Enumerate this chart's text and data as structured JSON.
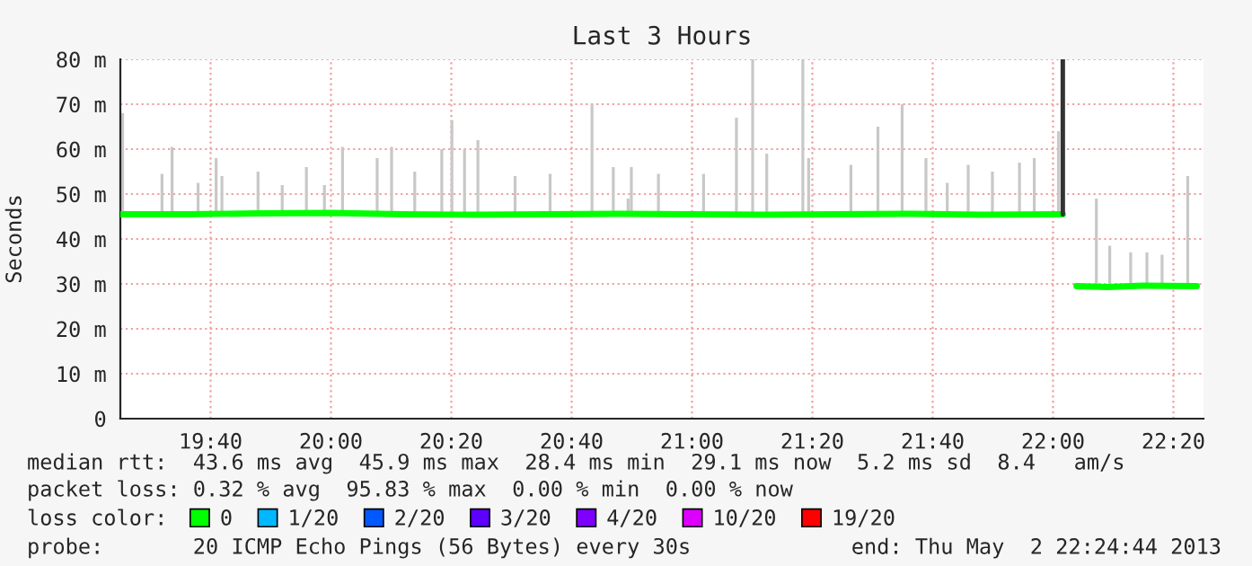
{
  "chart_data": {
    "type": "line",
    "title": "Last 3 Hours",
    "ylabel": "Seconds",
    "xlim": [
      19.4167,
      22.4167
    ],
    "ylim": [
      0,
      80
    ],
    "xticks": [
      {
        "value": 19.6667,
        "label": "19:40"
      },
      {
        "value": 20,
        "label": "20:00"
      },
      {
        "value": 20.3333,
        "label": "20:20"
      },
      {
        "value": 20.6667,
        "label": "20:40"
      },
      {
        "value": 21,
        "label": "21:00"
      },
      {
        "value": 21.3333,
        "label": "21:20"
      },
      {
        "value": 21.6667,
        "label": "21:40"
      },
      {
        "value": 22,
        "label": "22:00"
      },
      {
        "value": 22.3333,
        "label": "22:20"
      }
    ],
    "yticks": [
      0,
      {
        "value": 10,
        "label": "10 m"
      },
      {
        "value": 20,
        "label": "20 m"
      },
      {
        "value": 30,
        "label": "30 m"
      },
      {
        "value": 40,
        "label": "40 m"
      },
      {
        "value": 50,
        "label": "50 m"
      },
      {
        "value": 60,
        "label": "60 m"
      },
      {
        "value": 70,
        "label": "70 m"
      },
      {
        "value": 80,
        "label": "80 m"
      }
    ],
    "grid": true,
    "legend": "bottom",
    "legend_title": "loss color:",
    "series": [
      {
        "type": "bar",
        "color": "#c8c8c8",
        "x": [
          19.423,
          19.532,
          19.56,
          19.632,
          19.682,
          19.698,
          19.798,
          19.865,
          19.932,
          19.982,
          20.032,
          20.128,
          20.168,
          20.232,
          20.307,
          20.335,
          20.37,
          20.407,
          20.51,
          20.607,
          20.723,
          20.782,
          20.823,
          20.832,
          20.907,
          21.032,
          21.123,
          21.168,
          21.207,
          21.307,
          21.323,
          21.44,
          21.515,
          21.582,
          21.648,
          21.707,
          21.765,
          21.832,
          21.907,
          21.948,
          22.015,
          22.12,
          22.157,
          22.215,
          22.26,
          22.302,
          22.373
        ],
        "base": [
          45.5,
          45.5,
          45.5,
          45.5,
          45.5,
          45.5,
          45.5,
          45.5,
          45.5,
          45.5,
          45.5,
          45.5,
          45.5,
          45.5,
          45.5,
          45.5,
          45.5,
          45.5,
          45.5,
          45.5,
          45.5,
          45.5,
          45.5,
          45.5,
          45.5,
          45.5,
          45.5,
          45.5,
          45.5,
          45.5,
          45.5,
          45.5,
          45.5,
          45.5,
          45.5,
          45.5,
          45.5,
          45.5,
          45.5,
          45.5,
          45.5,
          29.5,
          29.5,
          29.5,
          29.5,
          29.5,
          29.5
        ],
        "values": [
          22.5,
          9,
          15,
          7,
          12.5,
          8.5,
          9.5,
          6.5,
          10.5,
          6.5,
          15,
          12.5,
          15,
          9.5,
          14.5,
          21,
          14.5,
          16.5,
          8.5,
          9,
          24.5,
          10.5,
          3.5,
          10.5,
          9,
          9,
          21.5,
          34.5,
          13.5,
          34.5,
          12.5,
          11,
          19.5,
          24.5,
          12.5,
          7,
          11,
          9.5,
          11.5,
          12.5,
          18.5,
          19.5,
          9,
          7.5,
          7.5,
          7,
          24.5
        ]
      },
      {
        "name": "0",
        "color": "#00ff00",
        "x": [
          19.417,
          19.6,
          19.8,
          20.0,
          20.2,
          20.4,
          20.6,
          20.8,
          21.0,
          21.2,
          21.4,
          21.6,
          21.8,
          22.027,
          22.045,
          22.065,
          22.15,
          22.25,
          22.398
        ],
        "values": [
          45.5,
          45.5,
          45.7,
          45.8,
          45.5,
          45.4,
          45.5,
          45.6,
          45.5,
          45.4,
          45.5,
          45.6,
          45.4,
          45.5,
          null,
          29.5,
          29.3,
          29.6,
          29.5
        ]
      },
      {
        "color": "#333333",
        "x": [
          22.027,
          22.027
        ],
        "values": [
          45.5,
          80
        ]
      },
      {
        "name": "1/20",
        "color": "#00b8ff"
      },
      {
        "name": "2/20",
        "color": "#0059ff"
      },
      {
        "name": "3/20",
        "color": "#5e00ff"
      },
      {
        "name": "4/20",
        "color": "#7e00ff"
      },
      {
        "name": "10/20",
        "color": "#dd00ff"
      },
      {
        "name": "19/20",
        "color": "#ff0000"
      }
    ],
    "annotations": [
      "median rtt:  43.6 ms avg  45.9 ms max  28.4 ms min  29.1 ms now  5.2 ms sd  8.4   am/s",
      "packet loss: 0.32 % avg  95.83 % max  0.00 % min  0.00 % now",
      "probe:       20 ICMP Echo Pings (56 Bytes) every 30s",
      "end: Thu May  2 22:24:44 2013"
    ]
  }
}
